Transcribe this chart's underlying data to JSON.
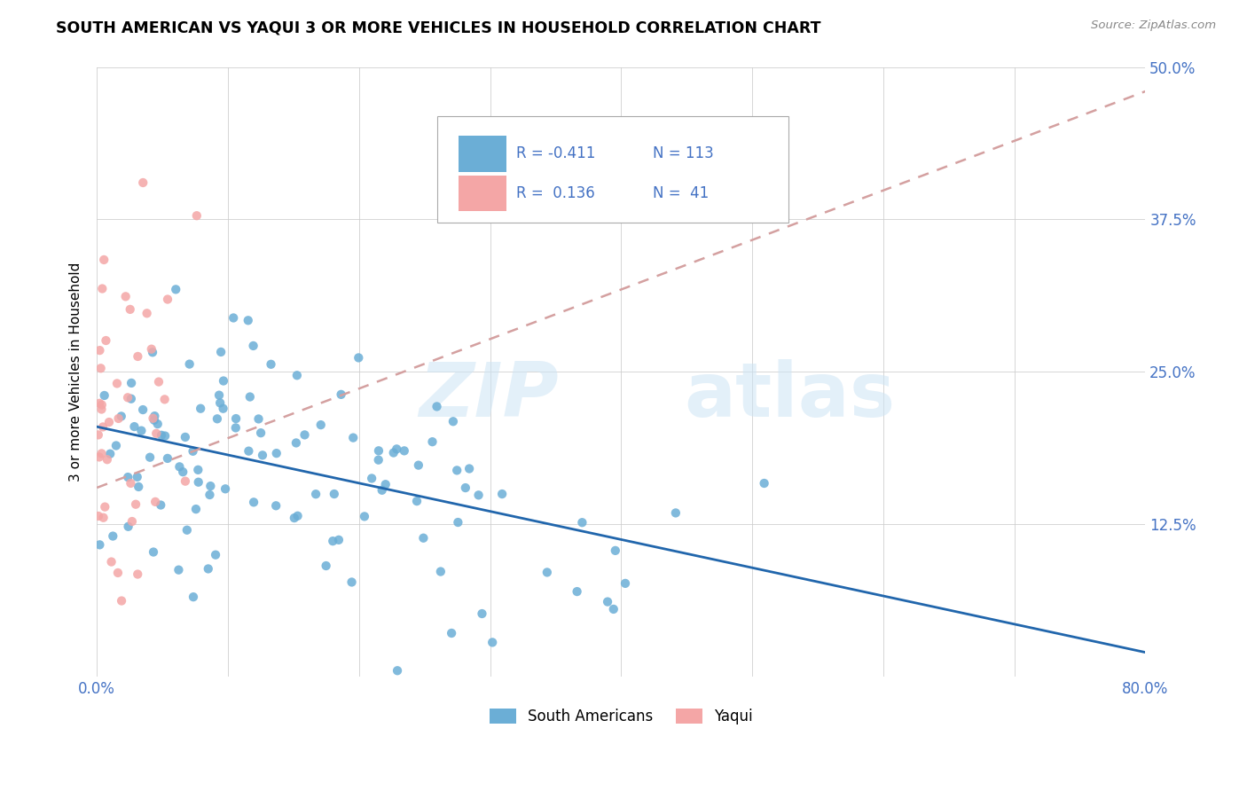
{
  "title": "SOUTH AMERICAN VS YAQUI 3 OR MORE VEHICLES IN HOUSEHOLD CORRELATION CHART",
  "source": "Source: ZipAtlas.com",
  "ylabel": "3 or more Vehicles in Household",
  "xlim": [
    0.0,
    0.8
  ],
  "ylim": [
    0.0,
    0.5
  ],
  "xtick_positions": [
    0.0,
    0.1,
    0.2,
    0.3,
    0.4,
    0.5,
    0.6,
    0.7,
    0.8
  ],
  "xticklabels": [
    "0.0%",
    "",
    "",
    "",
    "",
    "",
    "",
    "",
    "80.0%"
  ],
  "ytick_positions": [
    0.0,
    0.125,
    0.25,
    0.375,
    0.5
  ],
  "yticklabels": [
    "",
    "12.5%",
    "25.0%",
    "37.5%",
    "50.0%"
  ],
  "blue_R": "-0.411",
  "blue_N": "113",
  "pink_R": "0.136",
  "pink_N": "41",
  "blue_color": "#6baed6",
  "pink_color": "#f4a6a6",
  "blue_line_color": "#2166ac",
  "pink_line_color": "#d4a0a0",
  "legend_label_blue": "South Americans",
  "legend_label_pink": "Yaqui",
  "blue_trend_x0": 0.0,
  "blue_trend_x1": 0.8,
  "blue_trend_y0": 0.205,
  "blue_trend_y1": 0.02,
  "pink_trend_x0": 0.0,
  "pink_trend_x1": 0.8,
  "pink_trend_y0": 0.155,
  "pink_trend_y1": 0.48,
  "background_color": "#ffffff",
  "grid_color": "#cccccc",
  "tick_label_color": "#4472c4"
}
